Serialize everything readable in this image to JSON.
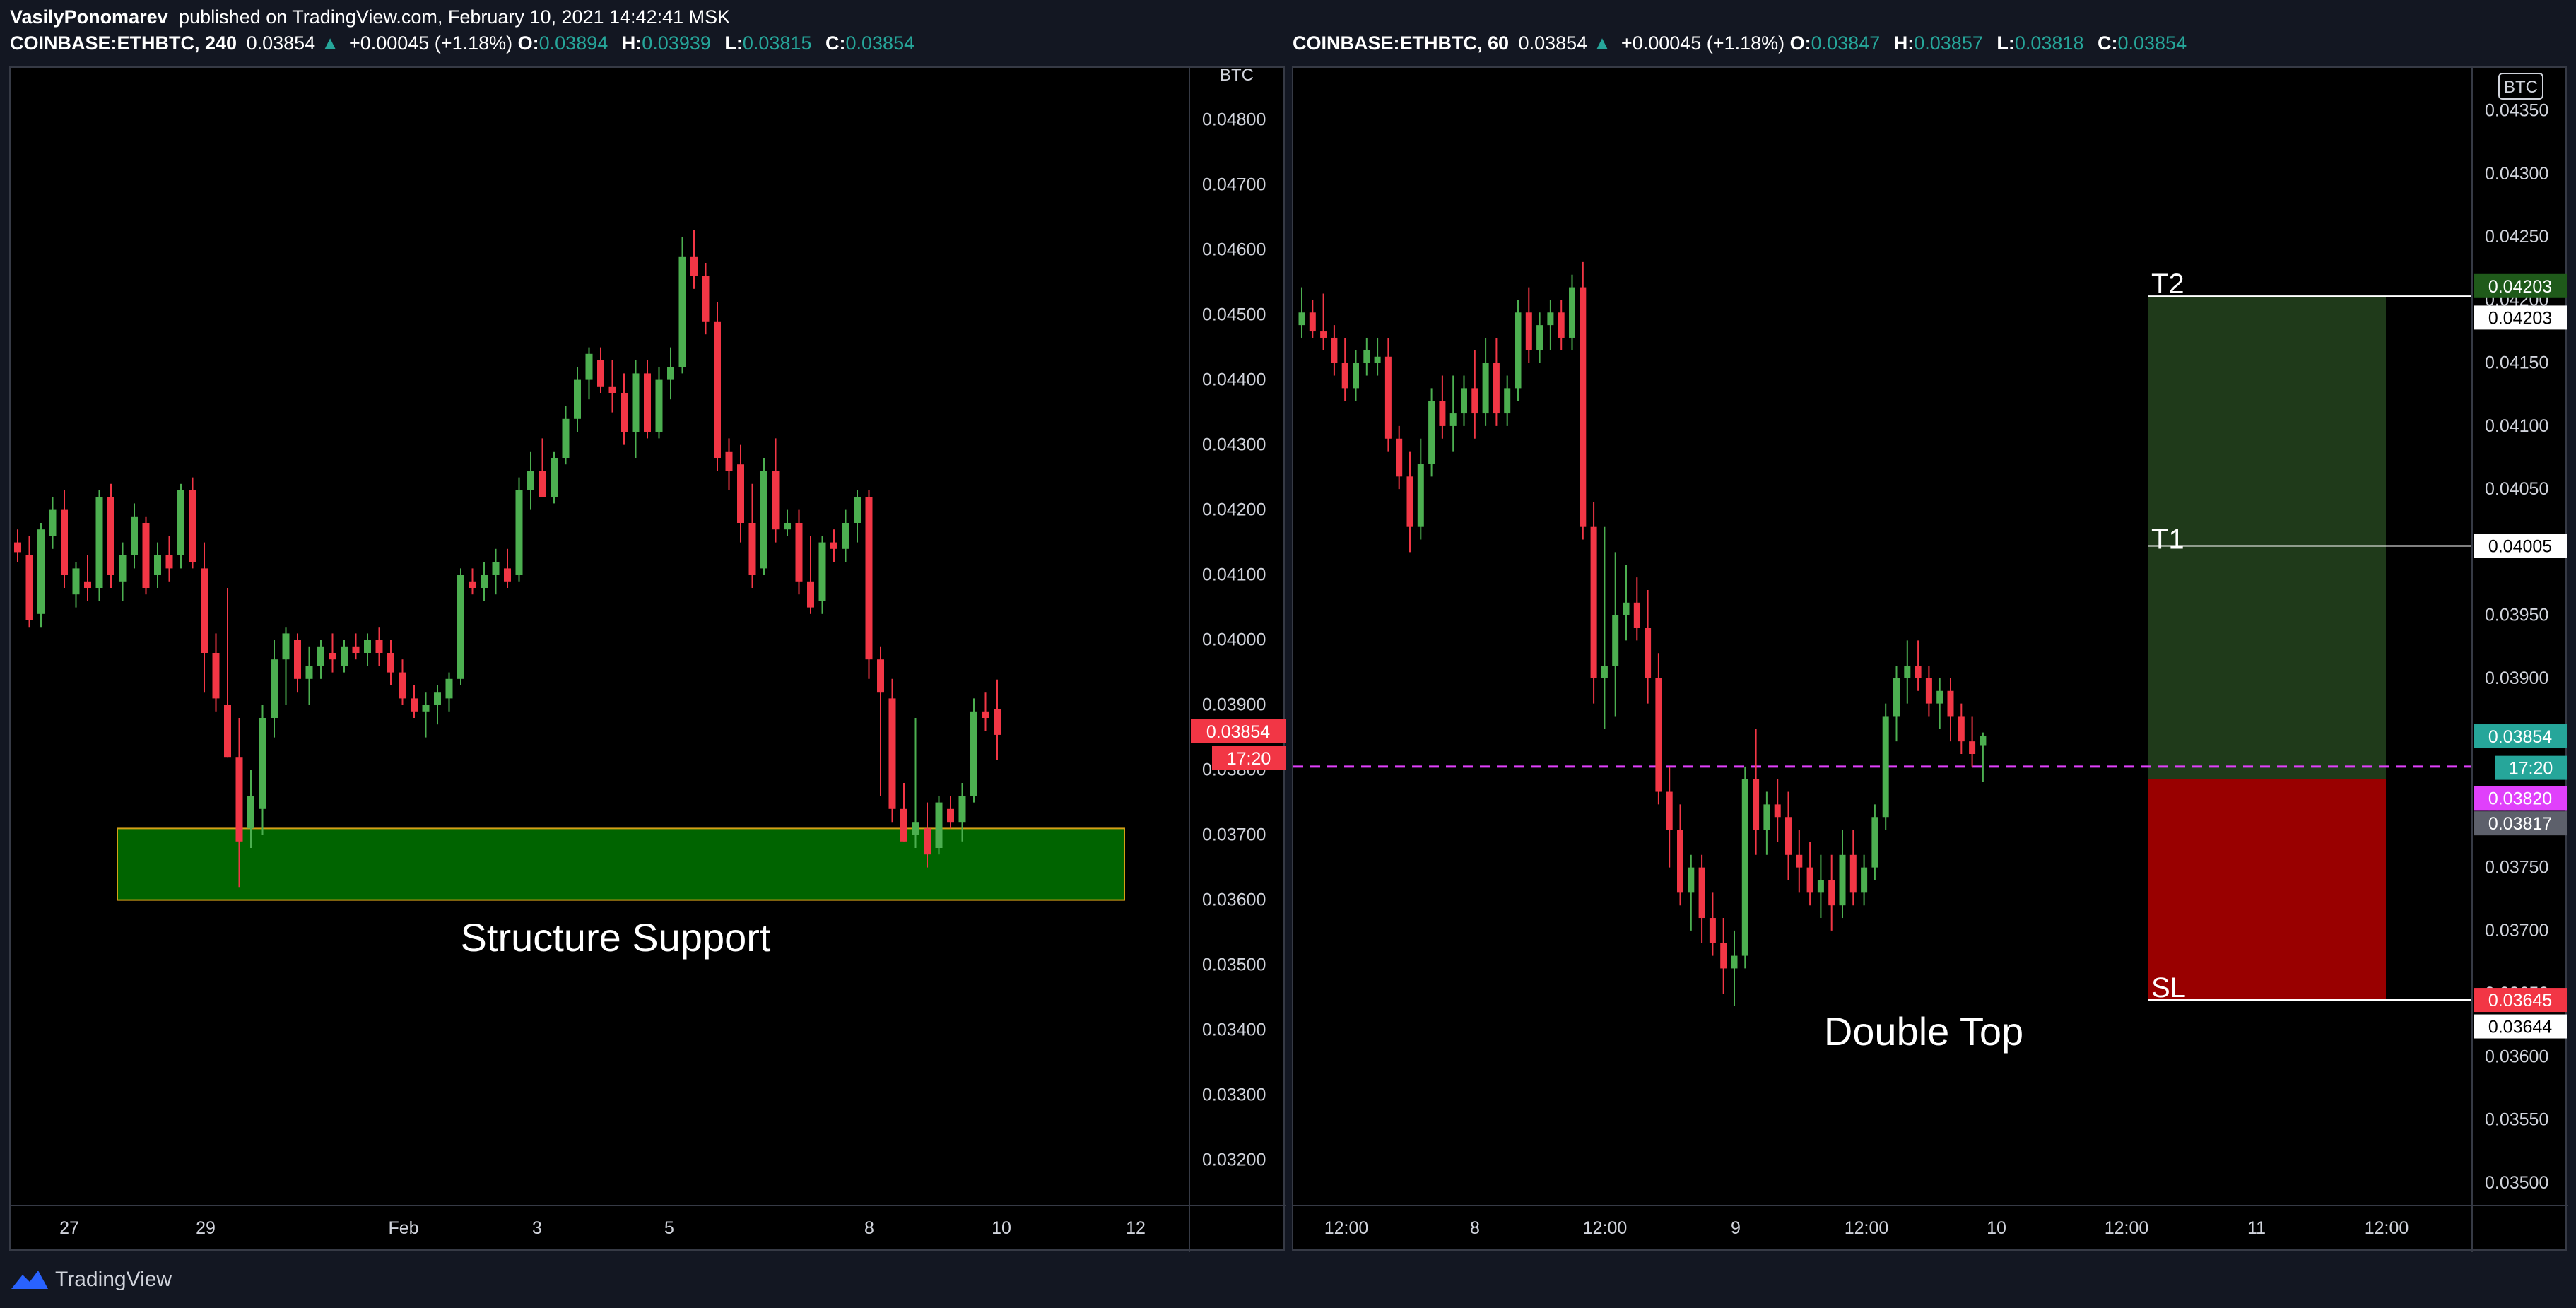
{
  "header": {
    "author": "VasilyPonomarev",
    "published": "published on TradingView.com, February 10, 2021 14:42:41 MSK"
  },
  "colors": {
    "bull": "#26a69a",
    "bear": "#ef5350",
    "candle_up": "#4caf50",
    "candle_down": "#f23645",
    "grid": "#131722",
    "text": "#d1d4dc",
    "zone": "#006400",
    "zone_border": "#d4a017",
    "target": "#1f3a1a",
    "stop": "#990000",
    "dashed": "#e040fb"
  },
  "left_chart": {
    "legend": {
      "symbol": "COINBASE:ETHBTC, 240",
      "last": "0.03854",
      "change": "+0.00045 (+1.18%)",
      "o_label": "O:",
      "o": "0.03894",
      "h_label": "H:",
      "h": "0.03939",
      "l_label": "L:",
      "l": "0.03815",
      "c_label": "C:",
      "c": "0.03854"
    },
    "currency": "BTC",
    "last_price_tag": "0.03854",
    "countdown": "17:20",
    "annotation": "Structure Support",
    "x_ticks": [
      "27",
      "29",
      "Feb",
      "3",
      "5",
      "8",
      "10",
      "12"
    ]
  },
  "right_chart": {
    "legend": {
      "symbol": "COINBASE:ETHBTC, 60",
      "last": "0.03854",
      "change": "+0.00045 (+1.18%)",
      "o_label": "O:",
      "o": "0.03847",
      "h_label": "H:",
      "h": "0.03857",
      "l_label": "L:",
      "l": "0.03818",
      "c_label": "C:",
      "c": "0.03854"
    },
    "currency": "BTC",
    "annotation": "Double Top",
    "labels": {
      "t2": "T2",
      "t1": "T1",
      "sl": "SL"
    },
    "price_tags": {
      "t2": "0.04203",
      "t2_line": "0.04203",
      "t1": "0.04005",
      "last": "0.03854",
      "countdown": "17:20",
      "entry": "0.03820",
      "low_line": "0.03817",
      "sl": "0.03645",
      "sl_line": "0.03644"
    },
    "x_ticks": [
      "12:00",
      "8",
      "12:00",
      "9",
      "12:00",
      "10",
      "12:00",
      "11",
      "12:00"
    ]
  },
  "chart_data": [
    {
      "type": "candlestick",
      "title": "COINBASE:ETHBTC, 240",
      "y_ticks": [
        "0.04800",
        "0.04700",
        "0.04600",
        "0.04500",
        "0.04400",
        "0.04300",
        "0.04200",
        "0.04100",
        "0.04000",
        "0.03900",
        "0.03800",
        "0.03700",
        "0.03600",
        "0.03500",
        "0.03400",
        "0.03300",
        "0.03200"
      ],
      "ylim": [
        0.0313,
        0.0488
      ],
      "zones": [
        {
          "name": "support",
          "from": 0.036,
          "to": 0.0371
        }
      ],
      "candles": [
        {
          "o": 0.0415,
          "h": 0.0417,
          "l": 0.0412,
          "c": 0.04135
        },
        {
          "o": 0.0413,
          "h": 0.0416,
          "l": 0.0402,
          "c": 0.0403
        },
        {
          "o": 0.0404,
          "h": 0.0418,
          "l": 0.0402,
          "c": 0.0417
        },
        {
          "o": 0.0416,
          "h": 0.0422,
          "l": 0.0414,
          "c": 0.042
        },
        {
          "o": 0.042,
          "h": 0.0423,
          "l": 0.0408,
          "c": 0.041
        },
        {
          "o": 0.0407,
          "h": 0.0412,
          "l": 0.0405,
          "c": 0.0411
        },
        {
          "o": 0.0409,
          "h": 0.0413,
          "l": 0.0406,
          "c": 0.0408
        },
        {
          "o": 0.0408,
          "h": 0.0423,
          "l": 0.0406,
          "c": 0.0422
        },
        {
          "o": 0.0422,
          "h": 0.0424,
          "l": 0.0408,
          "c": 0.041
        },
        {
          "o": 0.0409,
          "h": 0.0415,
          "l": 0.0406,
          "c": 0.0413
        },
        {
          "o": 0.0413,
          "h": 0.0421,
          "l": 0.0411,
          "c": 0.0419
        },
        {
          "o": 0.0418,
          "h": 0.0419,
          "l": 0.0407,
          "c": 0.0408
        },
        {
          "o": 0.041,
          "h": 0.0415,
          "l": 0.0408,
          "c": 0.0413
        },
        {
          "o": 0.0413,
          "h": 0.0416,
          "l": 0.0409,
          "c": 0.0411
        },
        {
          "o": 0.0413,
          "h": 0.0424,
          "l": 0.0411,
          "c": 0.0423
        },
        {
          "o": 0.0423,
          "h": 0.0425,
          "l": 0.0411,
          "c": 0.0412
        },
        {
          "o": 0.0411,
          "h": 0.0415,
          "l": 0.0392,
          "c": 0.0398
        },
        {
          "o": 0.0398,
          "h": 0.0401,
          "l": 0.0389,
          "c": 0.0391
        },
        {
          "o": 0.039,
          "h": 0.0408,
          "l": 0.0382,
          "c": 0.0382
        },
        {
          "o": 0.0382,
          "h": 0.0388,
          "l": 0.0362,
          "c": 0.0369
        },
        {
          "o": 0.0371,
          "h": 0.038,
          "l": 0.0368,
          "c": 0.0376
        },
        {
          "o": 0.0374,
          "h": 0.039,
          "l": 0.037,
          "c": 0.0388
        },
        {
          "o": 0.0388,
          "h": 0.04,
          "l": 0.0385,
          "c": 0.0397
        },
        {
          "o": 0.0397,
          "h": 0.0402,
          "l": 0.039,
          "c": 0.0401
        },
        {
          "o": 0.04,
          "h": 0.0401,
          "l": 0.0392,
          "c": 0.0394
        },
        {
          "o": 0.0394,
          "h": 0.0399,
          "l": 0.039,
          "c": 0.0396
        },
        {
          "o": 0.0396,
          "h": 0.04,
          "l": 0.0394,
          "c": 0.0399
        },
        {
          "o": 0.0398,
          "h": 0.0401,
          "l": 0.0395,
          "c": 0.0397
        },
        {
          "o": 0.0396,
          "h": 0.04,
          "l": 0.0395,
          "c": 0.0399
        },
        {
          "o": 0.0399,
          "h": 0.0401,
          "l": 0.0397,
          "c": 0.0398
        },
        {
          "o": 0.0398,
          "h": 0.0401,
          "l": 0.0396,
          "c": 0.04
        },
        {
          "o": 0.04,
          "h": 0.0402,
          "l": 0.0396,
          "c": 0.0398
        },
        {
          "o": 0.0398,
          "h": 0.04,
          "l": 0.0393,
          "c": 0.0395
        },
        {
          "o": 0.0395,
          "h": 0.0397,
          "l": 0.039,
          "c": 0.0391
        },
        {
          "o": 0.0391,
          "h": 0.0393,
          "l": 0.0388,
          "c": 0.0389
        },
        {
          "o": 0.0389,
          "h": 0.0392,
          "l": 0.0385,
          "c": 0.039
        },
        {
          "o": 0.039,
          "h": 0.0393,
          "l": 0.0387,
          "c": 0.0392
        },
        {
          "o": 0.0391,
          "h": 0.0395,
          "l": 0.0389,
          "c": 0.0394
        },
        {
          "o": 0.0394,
          "h": 0.0411,
          "l": 0.0393,
          "c": 0.041
        },
        {
          "o": 0.0409,
          "h": 0.0411,
          "l": 0.0407,
          "c": 0.0408
        },
        {
          "o": 0.0408,
          "h": 0.0412,
          "l": 0.0406,
          "c": 0.041
        },
        {
          "o": 0.041,
          "h": 0.0414,
          "l": 0.0407,
          "c": 0.0412
        },
        {
          "o": 0.0411,
          "h": 0.0414,
          "l": 0.0408,
          "c": 0.0409
        },
        {
          "o": 0.041,
          "h": 0.0425,
          "l": 0.0409,
          "c": 0.0423
        },
        {
          "o": 0.0423,
          "h": 0.0429,
          "l": 0.042,
          "c": 0.0426
        },
        {
          "o": 0.0426,
          "h": 0.0431,
          "l": 0.0422,
          "c": 0.0422
        },
        {
          "o": 0.0422,
          "h": 0.0429,
          "l": 0.0421,
          "c": 0.0428
        },
        {
          "o": 0.0428,
          "h": 0.0436,
          "l": 0.0427,
          "c": 0.0434
        },
        {
          "o": 0.0434,
          "h": 0.0442,
          "l": 0.0432,
          "c": 0.044
        },
        {
          "o": 0.044,
          "h": 0.0445,
          "l": 0.0437,
          "c": 0.0444
        },
        {
          "o": 0.0443,
          "h": 0.0445,
          "l": 0.0438,
          "c": 0.0439
        },
        {
          "o": 0.0439,
          "h": 0.0443,
          "l": 0.0435,
          "c": 0.0438
        },
        {
          "o": 0.0438,
          "h": 0.0441,
          "l": 0.043,
          "c": 0.0432
        },
        {
          "o": 0.0432,
          "h": 0.0443,
          "l": 0.0428,
          "c": 0.0441
        },
        {
          "o": 0.0441,
          "h": 0.0443,
          "l": 0.0431,
          "c": 0.0432
        },
        {
          "o": 0.0432,
          "h": 0.0442,
          "l": 0.0431,
          "c": 0.044
        },
        {
          "o": 0.044,
          "h": 0.0445,
          "l": 0.0437,
          "c": 0.0442
        },
        {
          "o": 0.0442,
          "h": 0.0462,
          "l": 0.0441,
          "c": 0.0459
        },
        {
          "o": 0.0459,
          "h": 0.0463,
          "l": 0.0454,
          "c": 0.0456
        },
        {
          "o": 0.0456,
          "h": 0.0458,
          "l": 0.0447,
          "c": 0.0449
        },
        {
          "o": 0.0449,
          "h": 0.0452,
          "l": 0.0426,
          "c": 0.0428
        },
        {
          "o": 0.0429,
          "h": 0.0431,
          "l": 0.0423,
          "c": 0.0426
        },
        {
          "o": 0.0427,
          "h": 0.043,
          "l": 0.0415,
          "c": 0.0418
        },
        {
          "o": 0.0418,
          "h": 0.0424,
          "l": 0.0408,
          "c": 0.041
        },
        {
          "o": 0.0411,
          "h": 0.0428,
          "l": 0.041,
          "c": 0.0426
        },
        {
          "o": 0.0426,
          "h": 0.0431,
          "l": 0.0415,
          "c": 0.0417
        },
        {
          "o": 0.0417,
          "h": 0.042,
          "l": 0.0416,
          "c": 0.0418
        },
        {
          "o": 0.0418,
          "h": 0.042,
          "l": 0.0407,
          "c": 0.0409
        },
        {
          "o": 0.0409,
          "h": 0.0416,
          "l": 0.0404,
          "c": 0.0405
        },
        {
          "o": 0.0406,
          "h": 0.0416,
          "l": 0.0404,
          "c": 0.0415
        },
        {
          "o": 0.0415,
          "h": 0.0417,
          "l": 0.0412,
          "c": 0.0414
        },
        {
          "o": 0.0414,
          "h": 0.042,
          "l": 0.0412,
          "c": 0.0418
        },
        {
          "o": 0.0418,
          "h": 0.0423,
          "l": 0.0415,
          "c": 0.0422
        },
        {
          "o": 0.0422,
          "h": 0.0423,
          "l": 0.0394,
          "c": 0.0397
        },
        {
          "o": 0.0397,
          "h": 0.0399,
          "l": 0.0376,
          "c": 0.0392
        },
        {
          "o": 0.0391,
          "h": 0.0394,
          "l": 0.0372,
          "c": 0.0374
        },
        {
          "o": 0.0374,
          "h": 0.0378,
          "l": 0.0369,
          "c": 0.0369
        },
        {
          "o": 0.037,
          "h": 0.0388,
          "l": 0.0368,
          "c": 0.0372
        },
        {
          "o": 0.0371,
          "h": 0.0375,
          "l": 0.0365,
          "c": 0.0367
        },
        {
          "o": 0.0368,
          "h": 0.0376,
          "l": 0.0367,
          "c": 0.0375
        },
        {
          "o": 0.0374,
          "h": 0.0376,
          "l": 0.0371,
          "c": 0.0372
        },
        {
          "o": 0.0372,
          "h": 0.0378,
          "l": 0.0369,
          "c": 0.0376
        },
        {
          "o": 0.0376,
          "h": 0.0391,
          "l": 0.0375,
          "c": 0.0389
        },
        {
          "o": 0.0389,
          "h": 0.0392,
          "l": 0.0386,
          "c": 0.0388
        },
        {
          "o": 0.03894,
          "h": 0.03939,
          "l": 0.03815,
          "c": 0.03854
        }
      ]
    },
    {
      "type": "candlestick",
      "title": "COINBASE:ETHBTC, 60",
      "y_ticks": [
        "0.04350",
        "0.04300",
        "0.04250",
        "0.04200",
        "0.04150",
        "0.04100",
        "0.04050",
        "0.04000",
        "0.03950",
        "0.03900",
        "0.03850",
        "0.03800",
        "0.03750",
        "0.03700",
        "0.03650",
        "0.03600",
        "0.03550",
        "0.03500"
      ],
      "ylim": [
        0.03482,
        0.04384
      ],
      "position": {
        "entry": 0.0382,
        "target1": 0.04005,
        "target2": 0.04203,
        "stop": 0.03645
      },
      "candles": [
        {
          "o": 0.0418,
          "h": 0.0421,
          "l": 0.0417,
          "c": 0.0419
        },
        {
          "o": 0.0419,
          "h": 0.042,
          "l": 0.0417,
          "c": 0.04175
        },
        {
          "o": 0.04175,
          "h": 0.04205,
          "l": 0.0416,
          "c": 0.0417
        },
        {
          "o": 0.0417,
          "h": 0.0418,
          "l": 0.0414,
          "c": 0.0415
        },
        {
          "o": 0.0415,
          "h": 0.0417,
          "l": 0.0412,
          "c": 0.0413
        },
        {
          "o": 0.0413,
          "h": 0.0416,
          "l": 0.0412,
          "c": 0.0415
        },
        {
          "o": 0.0415,
          "h": 0.0417,
          "l": 0.0414,
          "c": 0.0416
        },
        {
          "o": 0.0415,
          "h": 0.0417,
          "l": 0.0414,
          "c": 0.04155
        },
        {
          "o": 0.04155,
          "h": 0.0417,
          "l": 0.0408,
          "c": 0.0409
        },
        {
          "o": 0.0409,
          "h": 0.041,
          "l": 0.0405,
          "c": 0.0406
        },
        {
          "o": 0.0406,
          "h": 0.0408,
          "l": 0.04,
          "c": 0.0402
        },
        {
          "o": 0.0402,
          "h": 0.0409,
          "l": 0.0401,
          "c": 0.0407
        },
        {
          "o": 0.0407,
          "h": 0.0413,
          "l": 0.0406,
          "c": 0.0412
        },
        {
          "o": 0.0412,
          "h": 0.0414,
          "l": 0.0409,
          "c": 0.041
        },
        {
          "o": 0.041,
          "h": 0.0414,
          "l": 0.0408,
          "c": 0.0411
        },
        {
          "o": 0.0411,
          "h": 0.0414,
          "l": 0.041,
          "c": 0.0413
        },
        {
          "o": 0.0413,
          "h": 0.0416,
          "l": 0.0409,
          "c": 0.0411
        },
        {
          "o": 0.0411,
          "h": 0.0417,
          "l": 0.041,
          "c": 0.0415
        },
        {
          "o": 0.0415,
          "h": 0.0417,
          "l": 0.041,
          "c": 0.0411
        },
        {
          "o": 0.0411,
          "h": 0.0414,
          "l": 0.041,
          "c": 0.0413
        },
        {
          "o": 0.0413,
          "h": 0.042,
          "l": 0.0412,
          "c": 0.0419
        },
        {
          "o": 0.0419,
          "h": 0.0421,
          "l": 0.0415,
          "c": 0.0416
        },
        {
          "o": 0.0416,
          "h": 0.0419,
          "l": 0.0415,
          "c": 0.0418
        },
        {
          "o": 0.0418,
          "h": 0.042,
          "l": 0.0416,
          "c": 0.0419
        },
        {
          "o": 0.0419,
          "h": 0.042,
          "l": 0.0416,
          "c": 0.0417
        },
        {
          "o": 0.0417,
          "h": 0.0422,
          "l": 0.0416,
          "c": 0.0421
        },
        {
          "o": 0.0421,
          "h": 0.0423,
          "l": 0.0401,
          "c": 0.0402
        },
        {
          "o": 0.0402,
          "h": 0.0404,
          "l": 0.0388,
          "c": 0.039
        },
        {
          "o": 0.039,
          "h": 0.0402,
          "l": 0.0386,
          "c": 0.0391
        },
        {
          "o": 0.0391,
          "h": 0.04,
          "l": 0.0387,
          "c": 0.0395
        },
        {
          "o": 0.0395,
          "h": 0.0399,
          "l": 0.0393,
          "c": 0.0396
        },
        {
          "o": 0.0396,
          "h": 0.0398,
          "l": 0.0393,
          "c": 0.0394
        },
        {
          "o": 0.0394,
          "h": 0.0397,
          "l": 0.0388,
          "c": 0.039
        },
        {
          "o": 0.039,
          "h": 0.0392,
          "l": 0.038,
          "c": 0.0381
        },
        {
          "o": 0.0381,
          "h": 0.0383,
          "l": 0.0375,
          "c": 0.0378
        },
        {
          "o": 0.0378,
          "h": 0.038,
          "l": 0.0372,
          "c": 0.0373
        },
        {
          "o": 0.0373,
          "h": 0.0376,
          "l": 0.037,
          "c": 0.0375
        },
        {
          "o": 0.0375,
          "h": 0.0376,
          "l": 0.0369,
          "c": 0.0371
        },
        {
          "o": 0.0371,
          "h": 0.0373,
          "l": 0.0368,
          "c": 0.0369
        },
        {
          "o": 0.0369,
          "h": 0.0371,
          "l": 0.0365,
          "c": 0.0367
        },
        {
          "o": 0.0367,
          "h": 0.037,
          "l": 0.0364,
          "c": 0.0368
        },
        {
          "o": 0.0368,
          "h": 0.0383,
          "l": 0.0367,
          "c": 0.0382
        },
        {
          "o": 0.0382,
          "h": 0.0386,
          "l": 0.0376,
          "c": 0.0378
        },
        {
          "o": 0.0378,
          "h": 0.0381,
          "l": 0.0376,
          "c": 0.038
        },
        {
          "o": 0.038,
          "h": 0.0382,
          "l": 0.0377,
          "c": 0.0379
        },
        {
          "o": 0.0379,
          "h": 0.0381,
          "l": 0.0374,
          "c": 0.0376
        },
        {
          "o": 0.0376,
          "h": 0.0378,
          "l": 0.0373,
          "c": 0.0375
        },
        {
          "o": 0.0375,
          "h": 0.0377,
          "l": 0.0372,
          "c": 0.0373
        },
        {
          "o": 0.0373,
          "h": 0.0376,
          "l": 0.0371,
          "c": 0.0374
        },
        {
          "o": 0.0374,
          "h": 0.0376,
          "l": 0.037,
          "c": 0.0372
        },
        {
          "o": 0.0372,
          "h": 0.0378,
          "l": 0.0371,
          "c": 0.0376
        },
        {
          "o": 0.0376,
          "h": 0.0378,
          "l": 0.0372,
          "c": 0.0373
        },
        {
          "o": 0.0373,
          "h": 0.0376,
          "l": 0.0372,
          "c": 0.0375
        },
        {
          "o": 0.0375,
          "h": 0.038,
          "l": 0.0374,
          "c": 0.0379
        },
        {
          "o": 0.0379,
          "h": 0.0388,
          "l": 0.0378,
          "c": 0.0387
        },
        {
          "o": 0.0387,
          "h": 0.0391,
          "l": 0.0385,
          "c": 0.039
        },
        {
          "o": 0.039,
          "h": 0.0393,
          "l": 0.0388,
          "c": 0.0391
        },
        {
          "o": 0.0391,
          "h": 0.0393,
          "l": 0.0389,
          "c": 0.039
        },
        {
          "o": 0.039,
          "h": 0.0391,
          "l": 0.0387,
          "c": 0.0388
        },
        {
          "o": 0.0388,
          "h": 0.039,
          "l": 0.0386,
          "c": 0.0389
        },
        {
          "o": 0.0389,
          "h": 0.039,
          "l": 0.0385,
          "c": 0.0387
        },
        {
          "o": 0.0387,
          "h": 0.0388,
          "l": 0.0384,
          "c": 0.0385
        },
        {
          "o": 0.0385,
          "h": 0.0387,
          "l": 0.0383,
          "c": 0.0384
        },
        {
          "o": 0.03847,
          "h": 0.03857,
          "l": 0.03818,
          "c": 0.03854
        }
      ]
    }
  ]
}
